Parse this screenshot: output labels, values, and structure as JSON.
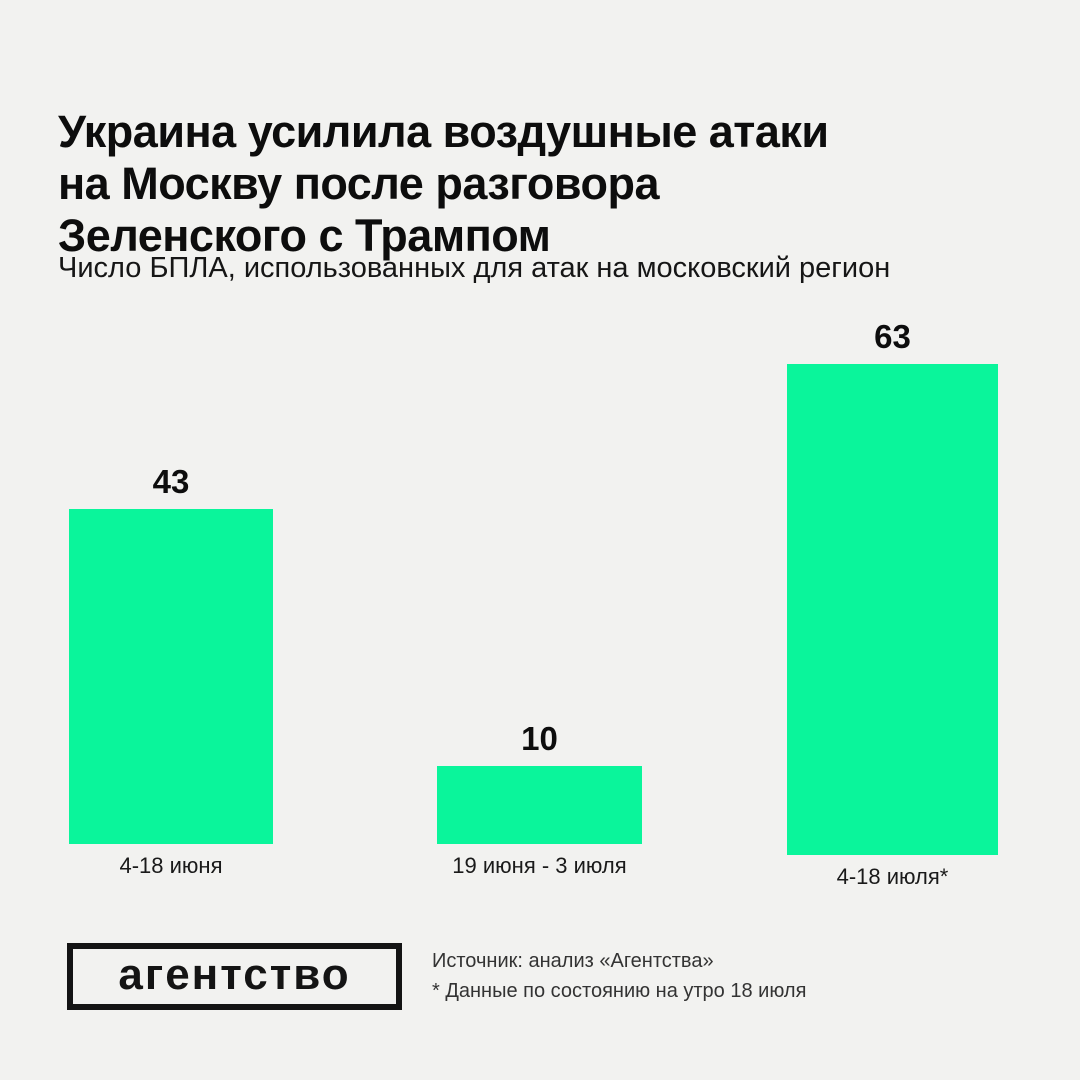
{
  "page": {
    "background": "#F2F2F0"
  },
  "header": {
    "title": "Украина усилила воздушные атаки на Москву после разговора Зеленского с Трампом",
    "title_lines": [
      "Украина усилила воздушные атаки",
      "на Москву после разговора",
      "Зеленского с Трампом"
    ],
    "subtitle": "Число БПЛА, использованных для атак на московский регион"
  },
  "chart_data": {
    "type": "bar",
    "title": "Украина усилила воздушные атаки на Москву после разговора Зеленского с Трампом",
    "subtitle": "Число БПЛА, использованных для атак на московский регион",
    "categories": [
      "4-18 июня",
      "19 июня - 3 июля",
      "4-18 июля*"
    ],
    "values": [
      43,
      10,
      63
    ],
    "value_labels": [
      "43",
      "10",
      "63"
    ],
    "bar_color": "#0AF59B",
    "xlabel": "",
    "ylabel": "",
    "ylim": [
      0,
      63
    ],
    "grid": false,
    "legend": false,
    "value_labels_position": "above-bars"
  },
  "footer": {
    "logo_text": "агентство",
    "source_line1": "Источник: анализ «Агентства»",
    "source_line2": "* Данные по состоянию на утро 18 июля"
  }
}
